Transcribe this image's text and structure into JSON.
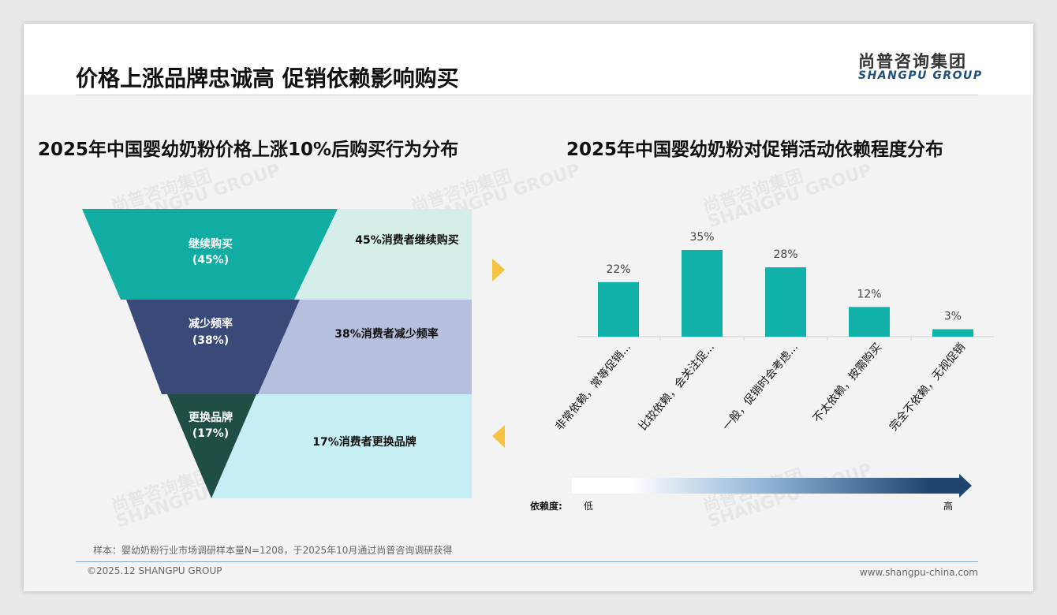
{
  "header": {
    "title": "价格上涨品牌忠诚高 促销依赖影响购买",
    "logo_cn": "尚普咨询集团",
    "logo_en": "SHANGPU GROUP"
  },
  "left": {
    "title": "2025年中国婴幼奶粉价格上涨10%后购买行为分布",
    "stages": [
      {
        "name": "继续购买",
        "pct": "(45%)",
        "desc": "45%消费者继续购买"
      },
      {
        "name": "减少频率",
        "pct": "(38%)",
        "desc": "38%消费者减少频率"
      },
      {
        "name": "更换品牌",
        "pct": "(17%)",
        "desc": "17%消费者更换品牌"
      }
    ]
  },
  "chart_data": {
    "type": "bar",
    "title": "2025年中国婴幼奶粉对促销活动依赖程度分布",
    "categories": [
      "非常依赖，常等促销...",
      "比较依赖，会关注促...",
      "一般，促销时会考虑...",
      "不太依赖，按需购买",
      "完全不依赖，无视促销"
    ],
    "values": [
      22,
      35,
      28,
      12,
      3
    ],
    "labels": [
      "22%",
      "35%",
      "28%",
      "12%",
      "3%"
    ],
    "ylim": [
      0,
      35
    ],
    "color": "#11b0a8"
  },
  "scale": {
    "label": "依赖度:",
    "low": "低",
    "high": "高"
  },
  "footer": {
    "note": "样本：婴幼奶粉行业市场调研样本量N=1208，于2025年10月通过尚普咨询调研获得",
    "copyright": "©2025.12 SHANGPU GROUP",
    "website": "www.shangpu-china.com"
  }
}
